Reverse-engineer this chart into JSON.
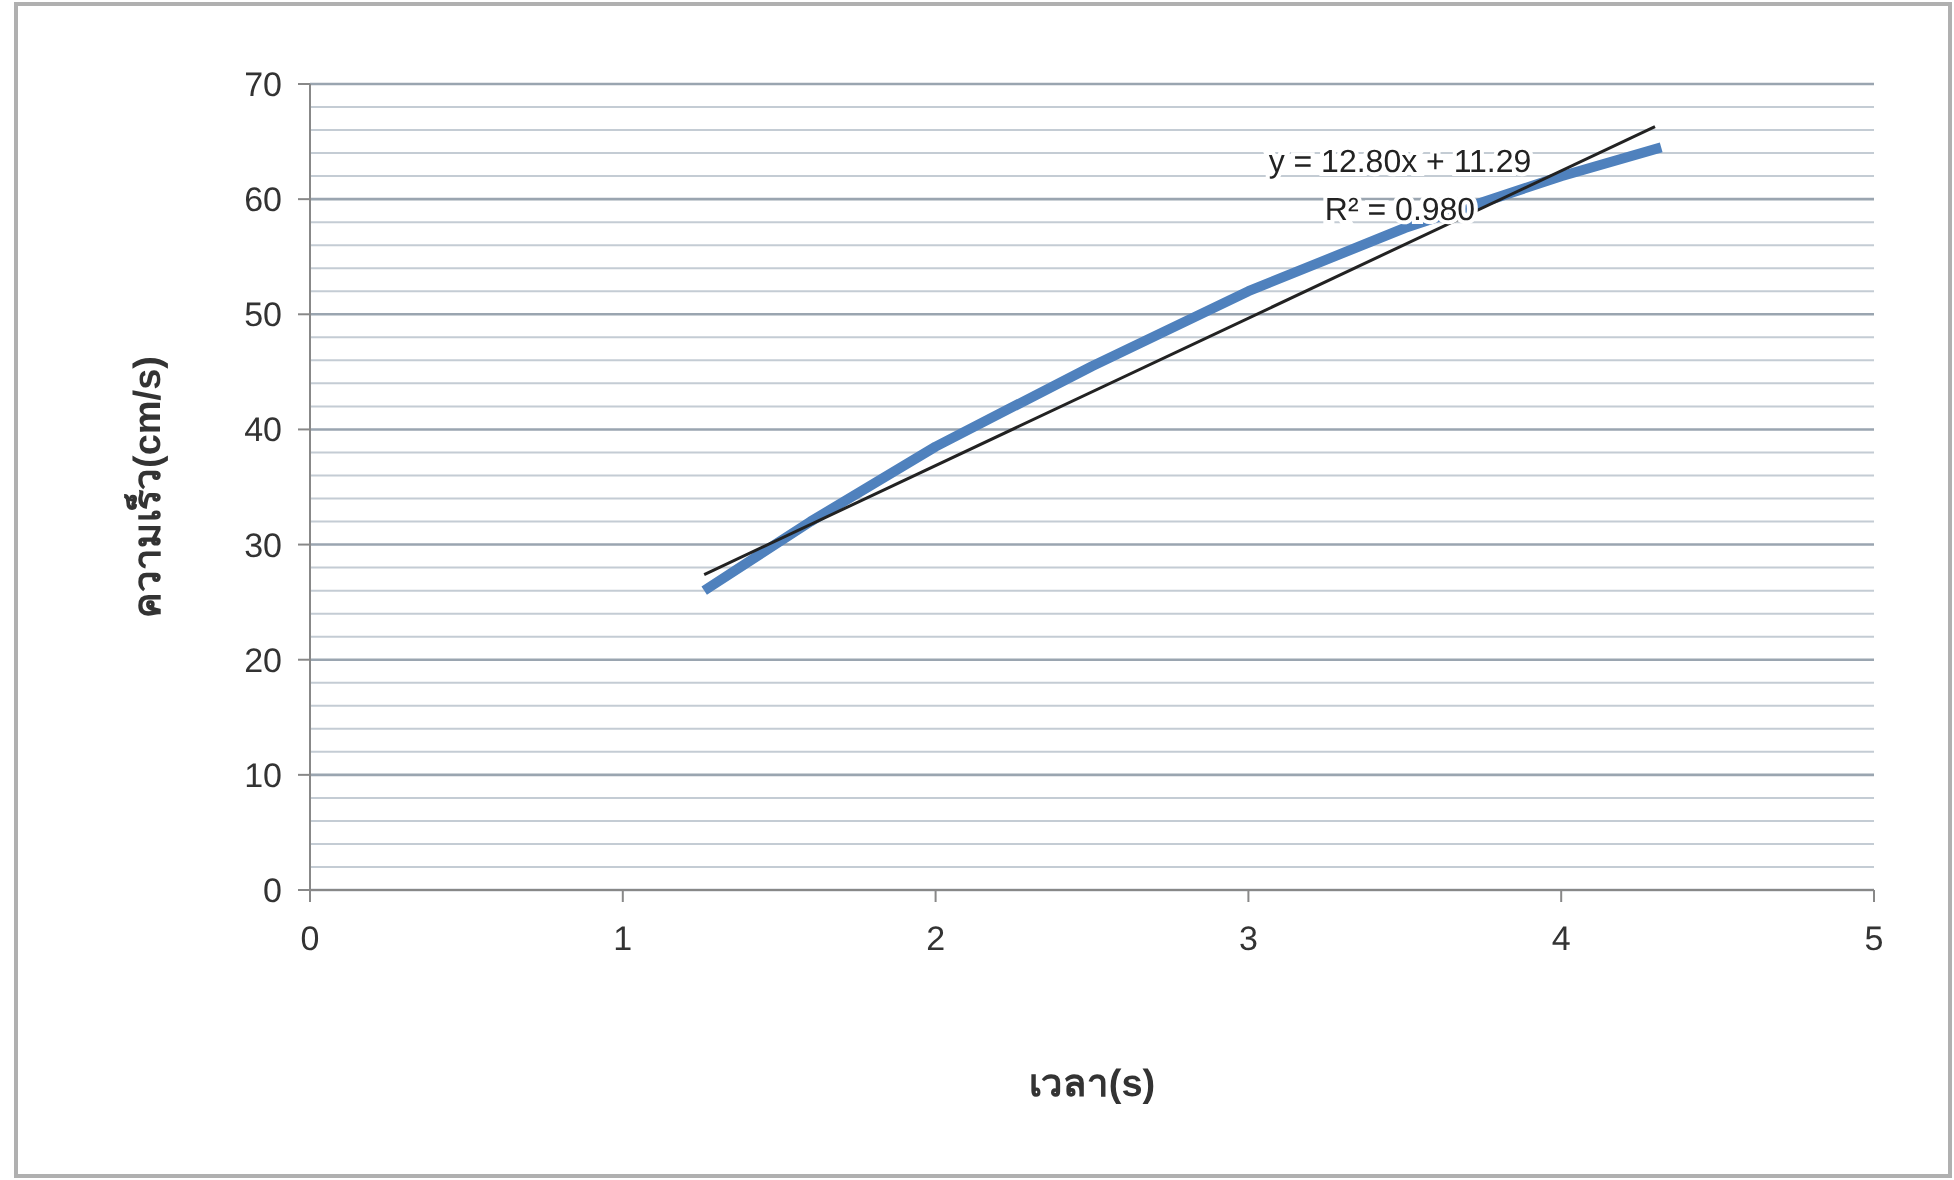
{
  "chart_data": {
    "type": "line",
    "xlabel": "เวลา(s)",
    "ylabel": "ความเร็ว(cm/s)",
    "xlim": [
      0,
      5
    ],
    "xticks": [
      0,
      1,
      2,
      3,
      4,
      5
    ],
    "ylim": [
      0,
      70
    ],
    "yticks": [
      0,
      10,
      20,
      30,
      40,
      50,
      60,
      70
    ],
    "grid": "y",
    "marker": "none",
    "line_style": "solid",
    "series": [
      {
        "color": "#4f81bd",
        "x": [
          1.26,
          1.6,
          2,
          2.5,
          3,
          3.5,
          4,
          4.32
        ],
        "values": [
          26,
          32,
          38.5,
          45.5,
          52,
          57.5,
          62,
          64.5
        ]
      },
      {
        "type": "line",
        "color": "#222222",
        "x": [
          1.26,
          4.3
        ],
        "values": [
          27.4,
          66.3
        ]
      }
    ],
    "annotations": [
      "y = 12.80x + 11.29",
      "R² = 0.980"
    ]
  }
}
